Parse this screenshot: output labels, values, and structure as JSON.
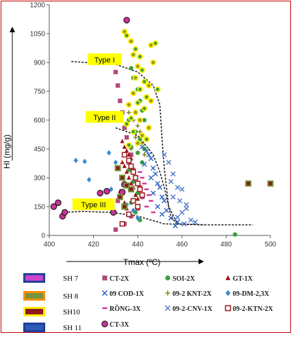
{
  "chart_data": {
    "type": "scatter",
    "xlabel": "Tmax (ºC)",
    "ylabel": "HI (mg/g)",
    "xlim": [
      400,
      500
    ],
    "ylim": [
      0,
      1200
    ],
    "x_ticks": [
      "400",
      "420",
      "440",
      "460",
      "480",
      "500"
    ],
    "y_ticks": [
      "0",
      "150",
      "300",
      "450",
      "600",
      "750",
      "900",
      "1050",
      "1200"
    ],
    "grid": false,
    "annotations": [
      {
        "label": "Type I",
        "x": 425,
        "y": 915
      },
      {
        "label": "Type II",
        "x": 425,
        "y": 615
      },
      {
        "label": "Type III",
        "x": 420,
        "y": 160
      }
    ],
    "type_curves": [
      {
        "name": "Type I",
        "points": [
          [
            410,
            905
          ],
          [
            430,
            890
          ],
          [
            440,
            850
          ],
          [
            447,
            780
          ],
          [
            450,
            680
          ],
          [
            451,
            500
          ],
          [
            452,
            350
          ],
          [
            454,
            150
          ],
          [
            458,
            60
          ],
          [
            470,
            55
          ],
          [
            492,
            55
          ]
        ]
      },
      {
        "name": "Type II",
        "points": [
          [
            430,
            560
          ],
          [
            440,
            520
          ],
          [
            447,
            420
          ],
          [
            450,
            330
          ],
          [
            452,
            250
          ],
          [
            455,
            100
          ],
          [
            458,
            55
          ]
        ]
      },
      {
        "name": "Type III",
        "points": [
          [
            407,
            120
          ],
          [
            415,
            125
          ],
          [
            428,
            120
          ],
          [
            440,
            100
          ],
          [
            452,
            60
          ],
          [
            470,
            55
          ]
        ]
      }
    ],
    "legend": {
      "wells": [
        {
          "label": "SH 7",
          "color": "#cc44cc"
        },
        {
          "label": "SH 8",
          "color": "#77933c"
        },
        {
          "label": "SH10",
          "color": "#8b1a1a"
        },
        {
          "label": "SH 11",
          "color": "#2e5ab8"
        }
      ],
      "wells_outline": [
        "#1f3f99",
        "#ff8c00",
        "#ffee00",
        "#1f3f99"
      ],
      "series": [
        {
          "label": "CT-2X",
          "marker": "square",
          "color": "#b04a7a"
        },
        {
          "label": "SOI-2X",
          "marker": "circle",
          "color": "#3aa040"
        },
        {
          "label": "GT-1X",
          "marker": "triangle",
          "color": "#a01818"
        },
        {
          "label": "09 COD-1X",
          "marker": "x",
          "color": "#2b5fc4"
        },
        {
          "label": "09-2 KNT-2X",
          "marker": "plus",
          "color": "#8a8a1a"
        },
        {
          "label": "09-DM-2,3X",
          "marker": "diamond",
          "color": "#3a8ad0"
        },
        {
          "label": "RỒNG-3X",
          "marker": "dash",
          "color": "#cc3399"
        },
        {
          "label": "09-2-CNV-1X",
          "marker": "x",
          "color": "#4a78c8"
        },
        {
          "label": "09-2-KTN-2X",
          "marker": "square-open",
          "color": "#a02020"
        },
        {
          "label": "CT-3X",
          "marker": "circle",
          "color": "#cc3366"
        }
      ]
    },
    "series_points": [
      {
        "name": "CT-2X",
        "points": [
          [
            430,
            850
          ],
          [
            431,
            780
          ],
          [
            432,
            700
          ],
          [
            433,
            640
          ],
          [
            434,
            560
          ],
          [
            435,
            510
          ],
          [
            436,
            470
          ],
          [
            437,
            420
          ],
          [
            436,
            380
          ],
          [
            438,
            340
          ],
          [
            439,
            300
          ],
          [
            435,
            260
          ],
          [
            433,
            220
          ],
          [
            431,
            180
          ],
          [
            440,
            140
          ],
          [
            437,
            100
          ],
          [
            434,
            60
          ],
          [
            430,
            30
          ],
          [
            441,
            250
          ],
          [
            442,
            200
          ]
        ]
      },
      {
        "name": "SOI-2X",
        "points": [
          [
            437,
            870
          ],
          [
            438,
            820
          ],
          [
            440,
            760
          ],
          [
            441,
            700
          ],
          [
            442,
            650
          ],
          [
            443,
            600
          ],
          [
            439,
            540
          ],
          [
            441,
            500
          ],
          [
            437,
            460
          ],
          [
            440,
            430
          ],
          [
            442,
            380
          ],
          [
            436,
            340
          ],
          [
            438,
            280
          ],
          [
            440,
            220
          ],
          [
            437,
            170
          ],
          [
            439,
            120
          ],
          [
            441,
            80
          ],
          [
            484,
            5
          ],
          [
            443,
            450
          ],
          [
            436,
            600
          ]
        ]
      },
      {
        "name": "GT-1X",
        "points": [
          [
            433,
            490
          ],
          [
            434,
            460
          ],
          [
            435,
            440
          ],
          [
            436,
            420
          ],
          [
            437,
            400
          ],
          [
            433,
            380
          ],
          [
            434,
            360
          ],
          [
            435,
            330
          ],
          [
            436,
            300
          ],
          [
            437,
            270
          ],
          [
            438,
            250
          ],
          [
            432,
            230
          ],
          [
            439,
            210
          ],
          [
            440,
            190
          ],
          [
            434,
            170
          ],
          [
            435,
            140
          ]
        ]
      },
      {
        "name": "09 COD-1X",
        "points": [
          [
            442,
            460
          ],
          [
            444,
            440
          ],
          [
            445,
            420
          ],
          [
            446,
            400
          ],
          [
            443,
            370
          ],
          [
            447,
            350
          ],
          [
            448,
            320
          ],
          [
            446,
            300
          ],
          [
            449,
            270
          ],
          [
            450,
            250
          ],
          [
            447,
            220
          ],
          [
            451,
            200
          ],
          [
            452,
            180
          ],
          [
            449,
            150
          ],
          [
            453,
            130
          ],
          [
            451,
            110
          ],
          [
            455,
            90
          ],
          [
            458,
            70
          ],
          [
            461,
            60
          ],
          [
            457,
            50
          ]
        ]
      },
      {
        "name": "09-2 KNT-2X",
        "points": [
          [
            436,
            640
          ],
          [
            438,
            600
          ],
          [
            440,
            570
          ],
          [
            441,
            540
          ],
          [
            439,
            510
          ],
          [
            442,
            480
          ],
          [
            437,
            450
          ],
          [
            443,
            420
          ]
        ]
      },
      {
        "name": "09-DM-2,3X",
        "points": [
          [
            412,
            390
          ],
          [
            416,
            385
          ],
          [
            418,
            290
          ],
          [
            427,
            430
          ],
          [
            430,
            380
          ],
          [
            428,
            240
          ],
          [
            432,
            200
          ],
          [
            435,
            160
          ],
          [
            438,
            130
          ],
          [
            440,
            90
          ]
        ]
      },
      {
        "name": "RỒNG-3X",
        "points": [
          [
            441,
            330
          ],
          [
            442,
            300
          ],
          [
            443,
            270
          ],
          [
            444,
            240
          ],
          [
            445,
            210
          ],
          [
            446,
            180
          ],
          [
            444,
            150
          ],
          [
            447,
            120
          ]
        ]
      },
      {
        "name": "09-2-CNV-1X",
        "points": [
          [
            452,
            420
          ],
          [
            454,
            380
          ],
          [
            456,
            320
          ],
          [
            455,
            280
          ],
          [
            458,
            250
          ],
          [
            460,
            240
          ],
          [
            456,
            200
          ],
          [
            459,
            180
          ],
          [
            462,
            140
          ],
          [
            460,
            120
          ],
          [
            464,
            80
          ],
          [
            466,
            70
          ],
          [
            458,
            95
          ],
          [
            462,
            160
          ]
        ]
      },
      {
        "name": "09-2-KTN-2X",
        "points": [
          [
            434,
            420
          ],
          [
            436,
            390
          ],
          [
            437,
            360
          ],
          [
            438,
            330
          ],
          [
            439,
            300
          ],
          [
            440,
            270
          ],
          [
            441,
            240
          ],
          [
            442,
            210
          ],
          [
            438,
            180
          ],
          [
            440,
            150
          ],
          [
            436,
            110
          ],
          [
            433,
            60
          ]
        ]
      },
      {
        "name": "CT-3X",
        "points": [
          [
            402,
            150
          ],
          [
            404,
            170
          ],
          [
            406,
            100
          ],
          [
            407,
            120
          ],
          [
            423,
            220
          ],
          [
            426,
            230
          ],
          [
            428,
            175
          ],
          [
            412,
            160
          ],
          [
            429,
            120
          ],
          [
            433,
            225
          ],
          [
            434,
            265
          ],
          [
            435,
            1120
          ]
        ]
      },
      {
        "name": "SH 8 wells",
        "points": [
          [
            490,
            270
          ],
          [
            500,
            270
          ],
          [
            431,
            350
          ],
          [
            433,
            300
          ],
          [
            435,
            260
          ],
          [
            437,
            240
          ],
          [
            432,
            200
          ],
          [
            434,
            150
          ]
        ]
      }
    ],
    "well_outlined_points": [
      {
        "well": "SH10",
        "points": [
          [
            434,
            1060
          ],
          [
            435,
            1040
          ],
          [
            437,
            1010
          ],
          [
            439,
            970
          ],
          [
            438,
            940
          ],
          [
            441,
            930
          ],
          [
            440,
            880
          ],
          [
            442,
            860
          ],
          [
            439,
            820
          ],
          [
            443,
            800
          ],
          [
            445,
            780
          ],
          [
            441,
            760
          ],
          [
            438,
            740
          ],
          [
            444,
            720
          ],
          [
            446,
            700
          ],
          [
            440,
            690
          ],
          [
            436,
            680
          ],
          [
            443,
            660
          ],
          [
            439,
            640
          ],
          [
            437,
            610
          ],
          [
            441,
            600
          ],
          [
            435,
            580
          ],
          [
            445,
            560
          ],
          [
            438,
            540
          ],
          [
            442,
            520
          ],
          [
            444,
            500
          ],
          [
            440,
            480
          ],
          [
            436,
            470
          ],
          [
            446,
            990
          ],
          [
            448,
            1000
          ],
          [
            447,
            900
          ],
          [
            449,
            760
          ]
        ]
      }
    ]
  }
}
